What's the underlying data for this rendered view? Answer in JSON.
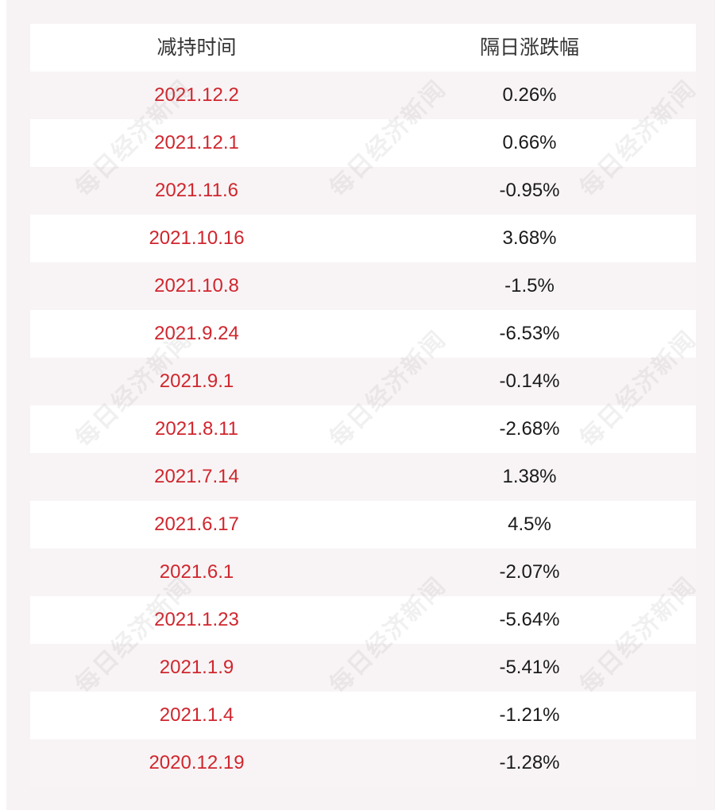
{
  "table": {
    "headers": [
      "减持时间",
      "隔日涨跌幅"
    ],
    "rows": [
      {
        "date": "2021.12.2",
        "change": "0.26%"
      },
      {
        "date": "2021.12.1",
        "change": "0.66%"
      },
      {
        "date": "2021.11.6",
        "change": "-0.95%"
      },
      {
        "date": "2021.10.16",
        "change": "3.68%"
      },
      {
        "date": "2021.10.8",
        "change": "-1.5%"
      },
      {
        "date": "2021.9.24",
        "change": "-6.53%"
      },
      {
        "date": "2021.9.1",
        "change": "-0.14%"
      },
      {
        "date": "2021.8.11",
        "change": "-2.68%"
      },
      {
        "date": "2021.7.14",
        "change": "1.38%"
      },
      {
        "date": "2021.6.17",
        "change": "4.5%"
      },
      {
        "date": "2021.6.1",
        "change": "-2.07%"
      },
      {
        "date": "2021.1.23",
        "change": "-5.64%"
      },
      {
        "date": "2021.1.9",
        "change": "-5.41%"
      },
      {
        "date": "2021.1.4",
        "change": "-1.21%"
      },
      {
        "date": "2020.12.19",
        "change": "-1.28%"
      }
    ]
  },
  "watermark": {
    "text": "每日经济新闻"
  },
  "colors": {
    "date_text": "#d0262e",
    "change_text": "#1a1a1a",
    "header_text": "#333333",
    "row_band": "#f8f4f5"
  }
}
